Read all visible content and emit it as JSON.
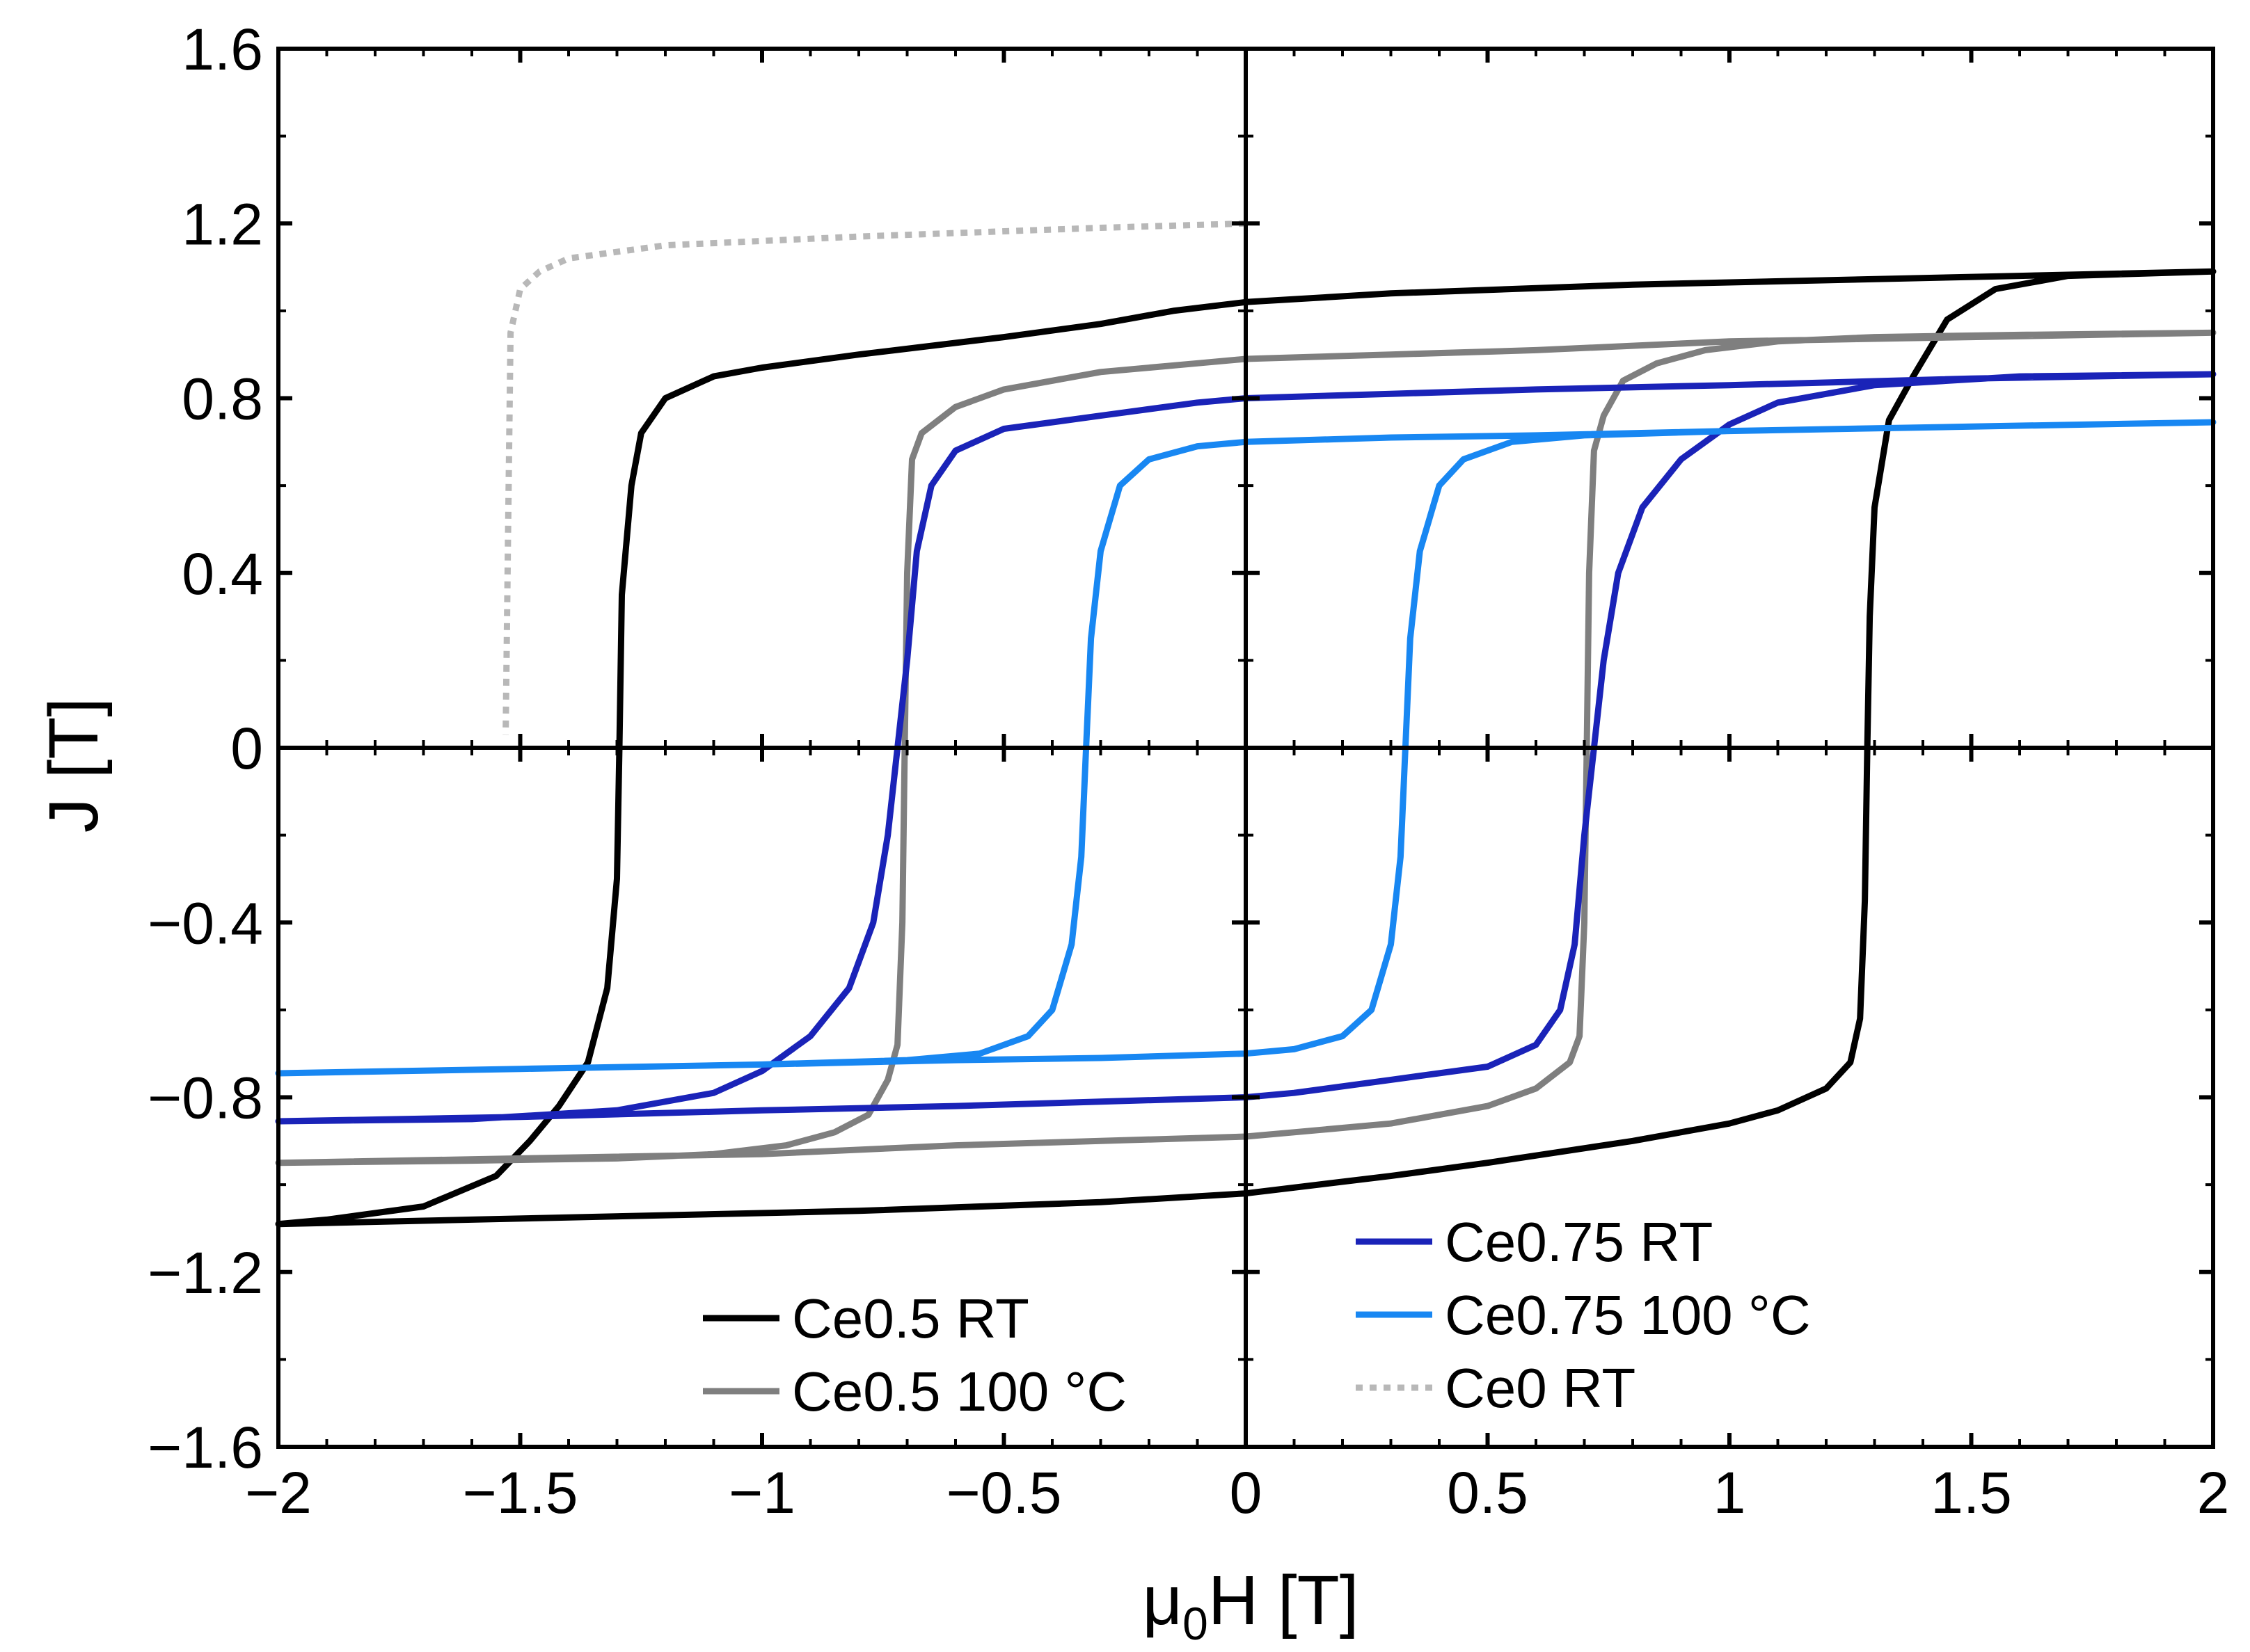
{
  "chart_data": {
    "type": "line",
    "title": "",
    "xlabel_main": "μ",
    "xlabel_sub": "0",
    "xlabel_rest": "H [T]",
    "ylabel": "J [T]",
    "xlim": [
      -2,
      2
    ],
    "ylim": [
      -1.6,
      1.6
    ],
    "xticks": [
      -2,
      -1.5,
      -1,
      -0.5,
      0,
      0.5,
      1,
      1.5,
      2
    ],
    "xtick_labels": [
      "−2",
      "−1.5",
      "−1",
      "−0.5",
      "0",
      "0.5",
      "1",
      "1.5",
      "2"
    ],
    "yticks": [
      -1.6,
      -1.2,
      -0.8,
      -0.4,
      0,
      0.4,
      0.8,
      1.2,
      1.6
    ],
    "ytick_labels": [
      "−1.6",
      "−1.2",
      "−0.8",
      "−0.4",
      "0",
      "0.4",
      "0.8",
      "1.2",
      "1.6"
    ],
    "grid": false,
    "series": [
      {
        "name": "Ce0.5 RT",
        "color": "#000000",
        "dash": "solid",
        "points": [
          [
            2.0,
            1.09
          ],
          [
            1.7,
            1.08
          ],
          [
            1.55,
            1.05
          ],
          [
            1.45,
            0.98
          ],
          [
            1.38,
            0.85
          ],
          [
            1.33,
            0.75
          ],
          [
            1.3,
            0.55
          ],
          [
            1.29,
            0.3
          ],
          [
            1.285,
            0.0
          ],
          [
            1.28,
            -0.35
          ],
          [
            1.27,
            -0.62
          ],
          [
            1.25,
            -0.72
          ],
          [
            1.2,
            -0.78
          ],
          [
            1.1,
            -0.83
          ],
          [
            1.0,
            -0.86
          ],
          [
            0.8,
            -0.9
          ],
          [
            0.5,
            -0.95
          ],
          [
            0.3,
            -0.98
          ],
          [
            0.15,
            -1.0
          ],
          [
            0.0,
            -1.02
          ],
          [
            -0.3,
            -1.04
          ],
          [
            -0.8,
            -1.06
          ],
          [
            -1.2,
            -1.07
          ],
          [
            -1.6,
            -1.08
          ],
          [
            -2.0,
            -1.09
          ],
          [
            -1.9,
            -1.08
          ],
          [
            -1.7,
            -1.05
          ],
          [
            -1.55,
            -0.98
          ],
          [
            -1.48,
            -0.9
          ],
          [
            -1.42,
            -0.82
          ],
          [
            -1.36,
            -0.72
          ],
          [
            -1.32,
            -0.55
          ],
          [
            -1.3,
            -0.3
          ],
          [
            -1.295,
            0.0
          ],
          [
            -1.29,
            0.35
          ],
          [
            -1.27,
            0.6
          ],
          [
            -1.25,
            0.72
          ],
          [
            -1.2,
            0.8
          ],
          [
            -1.1,
            0.85
          ],
          [
            -1.0,
            0.87
          ],
          [
            -0.8,
            0.9
          ],
          [
            -0.5,
            0.94
          ],
          [
            -0.3,
            0.97
          ],
          [
            -0.15,
            1.0
          ],
          [
            0.0,
            1.02
          ],
          [
            0.3,
            1.04
          ],
          [
            0.8,
            1.06
          ],
          [
            1.2,
            1.07
          ],
          [
            1.6,
            1.08
          ],
          [
            2.0,
            1.09
          ]
        ]
      },
      {
        "name": "Ce0.5 100 °C",
        "color": "#7f7f7f",
        "dash": "solid",
        "points": [
          [
            2.0,
            0.95
          ],
          [
            1.6,
            0.945
          ],
          [
            1.3,
            0.94
          ],
          [
            1.1,
            0.93
          ],
          [
            0.95,
            0.91
          ],
          [
            0.85,
            0.88
          ],
          [
            0.78,
            0.84
          ],
          [
            0.74,
            0.76
          ],
          [
            0.72,
            0.68
          ],
          [
            0.71,
            0.4
          ],
          [
            0.705,
            0.0
          ],
          [
            0.7,
            -0.4
          ],
          [
            0.69,
            -0.66
          ],
          [
            0.67,
            -0.72
          ],
          [
            0.6,
            -0.78
          ],
          [
            0.5,
            -0.82
          ],
          [
            0.3,
            -0.86
          ],
          [
            0.1,
            -0.88
          ],
          [
            0.0,
            -0.89
          ],
          [
            -0.3,
            -0.9
          ],
          [
            -0.6,
            -0.91
          ],
          [
            -1.0,
            -0.93
          ],
          [
            -1.5,
            -0.94
          ],
          [
            -2.0,
            -0.95
          ],
          [
            -1.6,
            -0.945
          ],
          [
            -1.3,
            -0.94
          ],
          [
            -1.1,
            -0.93
          ],
          [
            -0.95,
            -0.91
          ],
          [
            -0.85,
            -0.88
          ],
          [
            -0.78,
            -0.84
          ],
          [
            -0.74,
            -0.76
          ],
          [
            -0.72,
            -0.68
          ],
          [
            -0.71,
            -0.4
          ],
          [
            -0.705,
            0.0
          ],
          [
            -0.7,
            0.4
          ],
          [
            -0.69,
            0.66
          ],
          [
            -0.67,
            0.72
          ],
          [
            -0.6,
            0.78
          ],
          [
            -0.5,
            0.82
          ],
          [
            -0.3,
            0.86
          ],
          [
            -0.1,
            0.88
          ],
          [
            0.0,
            0.89
          ],
          [
            0.3,
            0.9
          ],
          [
            0.6,
            0.91
          ],
          [
            1.0,
            0.93
          ],
          [
            1.5,
            0.94
          ],
          [
            2.0,
            0.95
          ]
        ]
      },
      {
        "name": "Ce0.75 RT",
        "color": "#1a23b8",
        "dash": "solid",
        "points": [
          [
            2.0,
            0.855
          ],
          [
            1.6,
            0.85
          ],
          [
            1.3,
            0.83
          ],
          [
            1.1,
            0.79
          ],
          [
            1.0,
            0.74
          ],
          [
            0.9,
            0.66
          ],
          [
            0.82,
            0.55
          ],
          [
            0.77,
            0.4
          ],
          [
            0.74,
            0.2
          ],
          [
            0.72,
            0.0
          ],
          [
            0.7,
            -0.2
          ],
          [
            0.68,
            -0.45
          ],
          [
            0.65,
            -0.6
          ],
          [
            0.6,
            -0.68
          ],
          [
            0.5,
            -0.73
          ],
          [
            0.3,
            -0.76
          ],
          [
            0.1,
            -0.79
          ],
          [
            0.0,
            -0.8
          ],
          [
            -0.3,
            -0.81
          ],
          [
            -0.6,
            -0.82
          ],
          [
            -1.0,
            -0.83
          ],
          [
            -1.5,
            -0.845
          ],
          [
            -2.0,
            -0.855
          ],
          [
            -1.6,
            -0.85
          ],
          [
            -1.3,
            -0.83
          ],
          [
            -1.1,
            -0.79
          ],
          [
            -1.0,
            -0.74
          ],
          [
            -0.9,
            -0.66
          ],
          [
            -0.82,
            -0.55
          ],
          [
            -0.77,
            -0.4
          ],
          [
            -0.74,
            -0.2
          ],
          [
            -0.72,
            0.0
          ],
          [
            -0.7,
            0.2
          ],
          [
            -0.68,
            0.45
          ],
          [
            -0.65,
            0.6
          ],
          [
            -0.6,
            0.68
          ],
          [
            -0.5,
            0.73
          ],
          [
            -0.3,
            0.76
          ],
          [
            -0.1,
            0.79
          ],
          [
            0.0,
            0.8
          ],
          [
            0.3,
            0.81
          ],
          [
            0.6,
            0.82
          ],
          [
            1.0,
            0.83
          ],
          [
            1.5,
            0.845
          ],
          [
            2.0,
            0.855
          ]
        ]
      },
      {
        "name": "Ce0.75 100 °C",
        "color": "#1887f2",
        "dash": "solid",
        "points": [
          [
            2.0,
            0.745
          ],
          [
            1.5,
            0.735
          ],
          [
            1.0,
            0.725
          ],
          [
            0.7,
            0.715
          ],
          [
            0.55,
            0.7
          ],
          [
            0.45,
            0.66
          ],
          [
            0.4,
            0.6
          ],
          [
            0.36,
            0.45
          ],
          [
            0.34,
            0.25
          ],
          [
            0.33,
            0.0
          ],
          [
            0.32,
            -0.25
          ],
          [
            0.3,
            -0.45
          ],
          [
            0.26,
            -0.6
          ],
          [
            0.2,
            -0.66
          ],
          [
            0.1,
            -0.69
          ],
          [
            0.0,
            -0.7
          ],
          [
            -0.3,
            -0.71
          ],
          [
            -0.6,
            -0.715
          ],
          [
            -1.0,
            -0.725
          ],
          [
            -1.5,
            -0.735
          ],
          [
            -2.0,
            -0.745
          ],
          [
            -1.5,
            -0.735
          ],
          [
            -1.0,
            -0.725
          ],
          [
            -0.7,
            -0.715
          ],
          [
            -0.55,
            -0.7
          ],
          [
            -0.45,
            -0.66
          ],
          [
            -0.4,
            -0.6
          ],
          [
            -0.36,
            -0.45
          ],
          [
            -0.34,
            -0.25
          ],
          [
            -0.33,
            0.0
          ],
          [
            -0.32,
            0.25
          ],
          [
            -0.3,
            0.45
          ],
          [
            -0.26,
            0.6
          ],
          [
            -0.2,
            0.66
          ],
          [
            -0.1,
            0.69
          ],
          [
            0.0,
            0.7
          ],
          [
            0.3,
            0.71
          ],
          [
            0.6,
            0.715
          ],
          [
            1.0,
            0.725
          ],
          [
            1.5,
            0.735
          ],
          [
            2.0,
            0.745
          ]
        ]
      },
      {
        "name": "Ce0 RT",
        "color": "#b8b8b8",
        "dash": "dotted",
        "points": [
          [
            0.0,
            1.2
          ],
          [
            -0.3,
            1.19
          ],
          [
            -0.8,
            1.17
          ],
          [
            -1.2,
            1.15
          ],
          [
            -1.4,
            1.12
          ],
          [
            -1.46,
            1.09
          ],
          [
            -1.5,
            1.05
          ],
          [
            -1.52,
            0.95
          ],
          [
            -1.525,
            0.5
          ],
          [
            -1.53,
            0.03
          ]
        ]
      }
    ],
    "legend": [
      {
        "group": "left",
        "label": "Ce0.5 RT",
        "color": "#000000",
        "dash": "solid"
      },
      {
        "group": "left",
        "label": "Ce0.5 100 °C",
        "color": "#7f7f7f",
        "dash": "solid"
      },
      {
        "group": "right",
        "label": "Ce0.75 RT",
        "color": "#1a23b8",
        "dash": "solid"
      },
      {
        "group": "right",
        "label": "Ce0.75 100 °C",
        "color": "#1887f2",
        "dash": "solid"
      },
      {
        "group": "right",
        "label": "Ce0 RT",
        "color": "#b8b8b8",
        "dash": "dotted"
      }
    ]
  }
}
